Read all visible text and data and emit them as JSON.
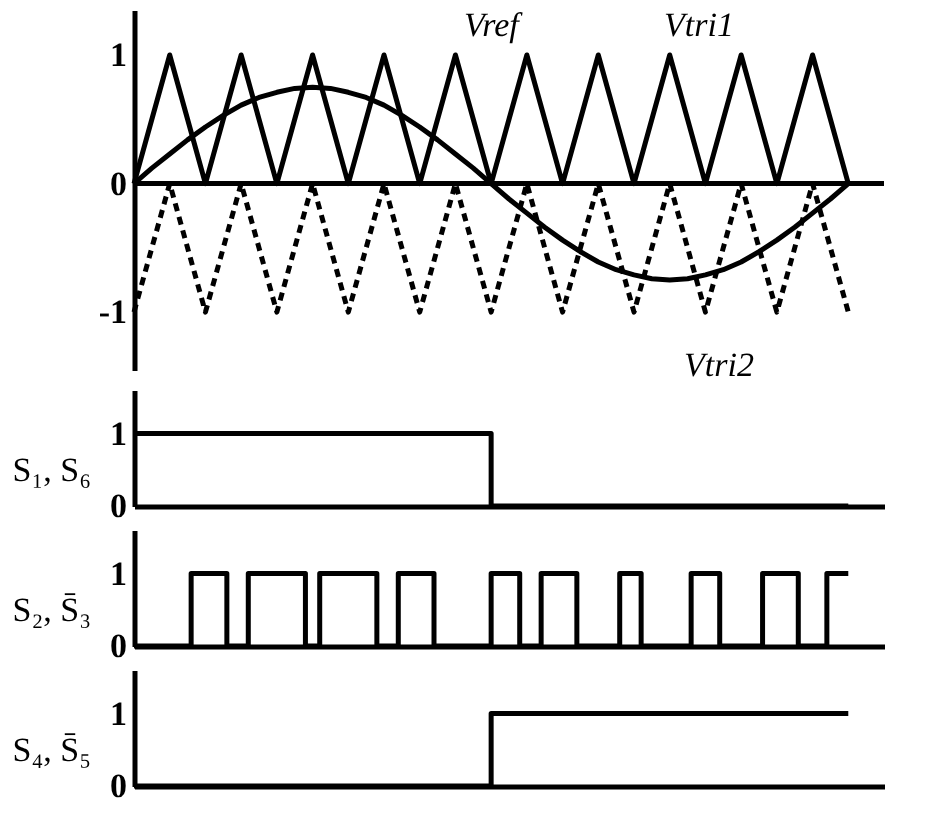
{
  "chart_data": [
    {
      "type": "line",
      "categories": [
        null,
        null,
        null,
        null,
        null,
        null,
        null,
        null,
        null,
        null,
        null,
        null,
        null,
        null,
        null,
        null,
        null,
        null,
        null,
        null,
        null,
        null,
        null,
        null,
        null,
        null,
        null,
        null,
        null,
        null,
        null,
        null,
        null,
        null,
        null,
        null,
        null,
        null,
        null,
        null,
        null,
        null,
        null
      ],
      "ylim": [
        -1.45,
        1.35
      ],
      "yticks": [
        -1,
        0,
        1
      ],
      "tick_labels": "y",
      "series": [
        {
          "color": "#000000",
          "values": [
            0,
            0.12,
            0.23,
            0.34,
            0.44,
            0.53,
            0.61,
            0.67,
            0.71,
            0.74,
            0.75,
            0.74,
            0.71,
            0.67,
            0.61,
            0.53,
            0.44,
            0.34,
            0.23,
            0.12,
            0,
            -0.12,
            -0.23,
            -0.34,
            -0.44,
            -0.53,
            -0.61,
            -0.67,
            -0.71,
            -0.74,
            -0.75,
            -0.74,
            -0.71,
            -0.67,
            -0.61,
            -0.53,
            -0.44,
            -0.34,
            -0.23,
            -0.12,
            0,
            null,
            null
          ]
        },
        {
          "color": "#000000",
          "values": [
            0,
            0.5,
            1,
            0.5,
            0,
            0.5,
            1,
            0.5,
            0,
            0.5,
            1,
            0.5,
            0,
            0.5,
            1,
            0.5,
            0,
            0.5,
            1,
            0.5,
            0,
            0.5,
            1,
            0.5,
            0,
            0.5,
            1,
            0.5,
            0,
            0.5,
            1,
            0.5,
            0,
            0.5,
            1,
            0.5,
            0,
            0.5,
            1,
            0.5,
            0,
            null,
            null
          ]
        },
        {
          "color": "#000000",
          "line_style": "dashed",
          "values": [
            -1,
            -0.5,
            0,
            -0.5,
            -1,
            -0.5,
            0,
            -0.5,
            -1,
            -0.5,
            0,
            -0.5,
            -1,
            -0.5,
            0,
            -0.5,
            -1,
            -0.5,
            0,
            -0.5,
            -1,
            -0.5,
            0,
            -0.5,
            -1,
            -0.5,
            0,
            -0.5,
            -1,
            -0.5,
            0,
            -0.5,
            -1,
            -0.5,
            0,
            -0.5,
            -1,
            -0.5,
            0,
            -0.5,
            -1,
            null,
            null
          ]
        }
      ],
      "ref_lines": [
        {
          "axis": "y",
          "value": 0
        }
      ],
      "annotations": [
        "Vref",
        "Vtri1",
        "Vtri2"
      ]
    },
    {
      "type": "step",
      "ylabel": "S₁, S₆",
      "categories": [
        null,
        null,
        null,
        null,
        null,
        null,
        null,
        null,
        null,
        null,
        null,
        null,
        null,
        null,
        null,
        null,
        null,
        null,
        null,
        null,
        null,
        null,
        null,
        null,
        null,
        null,
        null,
        null,
        null,
        null,
        null,
        null,
        null,
        null,
        null,
        null,
        null,
        null,
        null,
        null,
        null,
        null,
        null,
        null,
        null,
        null,
        null,
        null,
        null,
        null,
        null,
        null,
        null,
        null,
        null,
        null,
        null,
        null,
        null,
        null,
        null,
        null,
        null,
        null,
        null,
        null,
        null,
        null,
        null,
        null,
        null,
        null,
        null,
        null,
        null,
        null,
        null,
        null,
        null,
        null,
        null,
        null,
        null,
        null,
        null,
        null,
        null,
        null,
        null,
        null,
        null,
        null,
        null,
        null,
        null,
        null,
        null,
        null,
        null,
        null,
        null,
        null,
        null,
        null,
        null,
        null
      ],
      "values": [
        1,
        1,
        1,
        1,
        1,
        1,
        1,
        1,
        1,
        1,
        1,
        1,
        1,
        1,
        1,
        1,
        1,
        1,
        1,
        1,
        1,
        1,
        1,
        1,
        1,
        1,
        1,
        1,
        1,
        1,
        1,
        1,
        1,
        1,
        1,
        1,
        1,
        1,
        1,
        1,
        1,
        1,
        1,
        1,
        1,
        1,
        1,
        1,
        1,
        1,
        0,
        0,
        0,
        0,
        0,
        0,
        0,
        0,
        0,
        0,
        0,
        0,
        0,
        0,
        0,
        0,
        0,
        0,
        0,
        0,
        0,
        0,
        0,
        0,
        0,
        0,
        0,
        0,
        0,
        0,
        0,
        0,
        0,
        0,
        0,
        0,
        0,
        0,
        0,
        0,
        0,
        0,
        0,
        0,
        0,
        0,
        0,
        0,
        0,
        0,
        0,
        null,
        null,
        null,
        null,
        null
      ],
      "color": "#000000",
      "ylim": [
        0,
        1.6
      ],
      "yticks": [
        0,
        1
      ],
      "tick_labels": "y"
    },
    {
      "type": "step",
      "ylabel": "S₂, S̄₃",
      "categories": [
        null,
        null,
        null,
        null,
        null,
        null,
        null,
        null,
        null,
        null,
        null,
        null,
        null,
        null,
        null,
        null,
        null,
        null,
        null,
        null,
        null,
        null,
        null,
        null,
        null,
        null,
        null,
        null,
        null,
        null,
        null,
        null,
        null,
        null,
        null,
        null,
        null,
        null,
        null,
        null,
        null,
        null,
        null,
        null,
        null,
        null,
        null,
        null,
        null,
        null,
        null,
        null,
        null,
        null,
        null,
        null,
        null,
        null,
        null,
        null,
        null,
        null,
        null,
        null,
        null,
        null,
        null,
        null,
        null,
        null,
        null,
        null,
        null,
        null,
        null,
        null,
        null,
        null,
        null,
        null,
        null,
        null,
        null,
        null,
        null,
        null,
        null,
        null,
        null,
        null,
        null,
        null,
        null,
        null,
        null,
        null,
        null,
        null,
        null,
        null,
        null,
        null,
        null,
        null,
        null,
        null
      ],
      "values": [
        0,
        0,
        0,
        0,
        0,
        0,
        0,
        0,
        1,
        1,
        1,
        1,
        1,
        0,
        0,
        0,
        1,
        1,
        1,
        1,
        1,
        1,
        1,
        1,
        0,
        0,
        1,
        1,
        1,
        1,
        1,
        1,
        1,
        1,
        0,
        0,
        0,
        1,
        1,
        1,
        1,
        1,
        0,
        0,
        0,
        0,
        0,
        0,
        0,
        0,
        1,
        1,
        1,
        1,
        0,
        0,
        0,
        1,
        1,
        1,
        1,
        1,
        0,
        0,
        0,
        0,
        0,
        0,
        1,
        1,
        1,
        0,
        0,
        0,
        0,
        0,
        0,
        0,
        1,
        1,
        1,
        1,
        0,
        0,
        0,
        0,
        0,
        0,
        1,
        1,
        1,
        1,
        1,
        0,
        0,
        0,
        0,
        1,
        1,
        1,
        1,
        null,
        null,
        null,
        null,
        null
      ],
      "color": "#000000",
      "ylim": [
        0,
        1.6
      ],
      "yticks": [
        0,
        1
      ],
      "tick_labels": "y"
    },
    {
      "type": "step",
      "ylabel": "S₄, S̄₅",
      "categories": [
        null,
        null,
        null,
        null,
        null,
        null,
        null,
        null,
        null,
        null,
        null,
        null,
        null,
        null,
        null,
        null,
        null,
        null,
        null,
        null,
        null,
        null,
        null,
        null,
        null,
        null,
        null,
        null,
        null,
        null,
        null,
        null,
        null,
        null,
        null,
        null,
        null,
        null,
        null,
        null,
        null,
        null,
        null,
        null,
        null,
        null,
        null,
        null,
        null,
        null,
        null,
        null,
        null,
        null,
        null,
        null,
        null,
        null,
        null,
        null,
        null,
        null,
        null,
        null,
        null,
        null,
        null,
        null,
        null,
        null,
        null,
        null,
        null,
        null,
        null,
        null,
        null,
        null,
        null,
        null,
        null,
        null,
        null,
        null,
        null,
        null,
        null,
        null,
        null,
        null,
        null,
        null,
        null,
        null,
        null,
        null,
        null,
        null,
        null,
        null,
        null,
        null,
        null,
        null,
        null,
        null
      ],
      "values": [
        0,
        0,
        0,
        0,
        0,
        0,
        0,
        0,
        0,
        0,
        0,
        0,
        0,
        0,
        0,
        0,
        0,
        0,
        0,
        0,
        0,
        0,
        0,
        0,
        0,
        0,
        0,
        0,
        0,
        0,
        0,
        0,
        0,
        0,
        0,
        0,
        0,
        0,
        0,
        0,
        0,
        0,
        0,
        0,
        0,
        0,
        0,
        0,
        0,
        0,
        1,
        1,
        1,
        1,
        1,
        1,
        1,
        1,
        1,
        1,
        1,
        1,
        1,
        1,
        1,
        1,
        1,
        1,
        1,
        1,
        1,
        1,
        1,
        1,
        1,
        1,
        1,
        1,
        1,
        1,
        1,
        1,
        1,
        1,
        1,
        1,
        1,
        1,
        1,
        1,
        1,
        1,
        1,
        1,
        1,
        1,
        1,
        1,
        1,
        1,
        1,
        null,
        null,
        null,
        null,
        null
      ],
      "color": "#000000",
      "ylim": [
        0,
        1.6
      ],
      "yticks": [
        0,
        1
      ],
      "tick_labels": "y"
    }
  ]
}
